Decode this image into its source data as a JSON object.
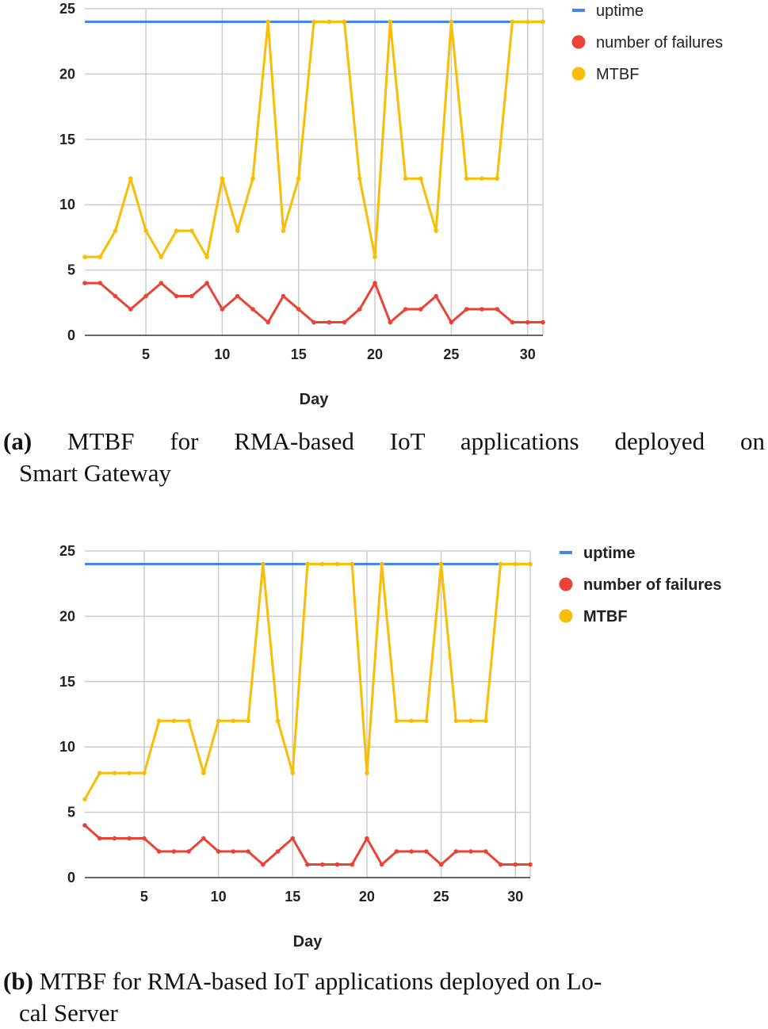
{
  "chart_data": [
    {
      "type": "line",
      "x": [
        1,
        2,
        3,
        4,
        5,
        6,
        7,
        8,
        9,
        10,
        11,
        12,
        13,
        14,
        15,
        16,
        17,
        18,
        19,
        20,
        21,
        22,
        23,
        24,
        25,
        26,
        27,
        28,
        29,
        30,
        31
      ],
      "xlabel": "Day",
      "ylabel": "",
      "xlim": [
        1,
        31
      ],
      "ylim": [
        0,
        25
      ],
      "x_ticks": [
        "5",
        "10",
        "15",
        "20",
        "25",
        "30"
      ],
      "y_ticks": [
        "0",
        "5",
        "10",
        "15",
        "20",
        "25"
      ],
      "grid": true,
      "legend": "right",
      "series": [
        {
          "name": "uptime",
          "color": "#4285f4",
          "values": [
            24,
            24,
            24,
            24,
            24,
            24,
            24,
            24,
            24,
            24,
            24,
            24,
            24,
            24,
            24,
            24,
            24,
            24,
            24,
            24,
            24,
            24,
            24,
            24,
            24,
            24,
            24,
            24,
            24,
            24,
            24
          ]
        },
        {
          "name": "number of failures",
          "color": "#ea4335",
          "values": [
            4,
            4,
            3,
            2,
            3,
            4,
            3,
            3,
            4,
            2,
            3,
            2,
            1,
            3,
            2,
            1,
            1,
            1,
            2,
            4,
            1,
            2,
            2,
            3,
            1,
            2,
            2,
            2,
            1,
            1,
            1
          ]
        },
        {
          "name": "MTBF",
          "color": "#fbbc04",
          "values": [
            6,
            6,
            8,
            12,
            8,
            6,
            8,
            8,
            6,
            12,
            8,
            12,
            24,
            8,
            12,
            24,
            24,
            24,
            12,
            6,
            24,
            12,
            12,
            8,
            24,
            12,
            12,
            12,
            24,
            24,
            24
          ]
        }
      ]
    },
    {
      "type": "line",
      "x": [
        1,
        2,
        3,
        4,
        5,
        6,
        7,
        8,
        9,
        10,
        11,
        12,
        13,
        14,
        15,
        16,
        17,
        18,
        19,
        20,
        21,
        22,
        23,
        24,
        25,
        26,
        27,
        28,
        29,
        30,
        31
      ],
      "xlabel": "Day",
      "ylabel": "",
      "xlim": [
        1,
        31
      ],
      "ylim": [
        0,
        25
      ],
      "x_ticks": [
        "5",
        "10",
        "15",
        "20",
        "25",
        "30"
      ],
      "y_ticks": [
        "0",
        "5",
        "10",
        "15",
        "20",
        "25"
      ],
      "grid": true,
      "legend": "right",
      "series": [
        {
          "name": "uptime",
          "color": "#4285f4",
          "values": [
            24,
            24,
            24,
            24,
            24,
            24,
            24,
            24,
            24,
            24,
            24,
            24,
            24,
            24,
            24,
            24,
            24,
            24,
            24,
            24,
            24,
            24,
            24,
            24,
            24,
            24,
            24,
            24,
            24,
            24,
            24
          ]
        },
        {
          "name": "number of failures",
          "color": "#ea4335",
          "values": [
            4,
            3,
            3,
            3,
            3,
            2,
            2,
            2,
            3,
            2,
            2,
            2,
            1,
            2,
            3,
            1,
            1,
            1,
            1,
            3,
            1,
            2,
            2,
            2,
            1,
            2,
            2,
            2,
            1,
            1,
            1
          ]
        },
        {
          "name": "MTBF",
          "color": "#fbbc04",
          "values": [
            6,
            8,
            8,
            8,
            8,
            12,
            12,
            12,
            8,
            12,
            12,
            12,
            24,
            12,
            8,
            24,
            24,
            24,
            24,
            8,
            24,
            12,
            12,
            12,
            24,
            12,
            12,
            12,
            24,
            24,
            24
          ]
        }
      ]
    }
  ],
  "captions": {
    "a": {
      "label": "(a)",
      "line1": "MTBF for RMA-based IoT applications deployed on",
      "line2": "Smart Gateway"
    },
    "b": {
      "label": "(b)",
      "line1": "MTBF for RMA-based IoT applications deployed on Lo-",
      "line2": "cal Server"
    }
  }
}
